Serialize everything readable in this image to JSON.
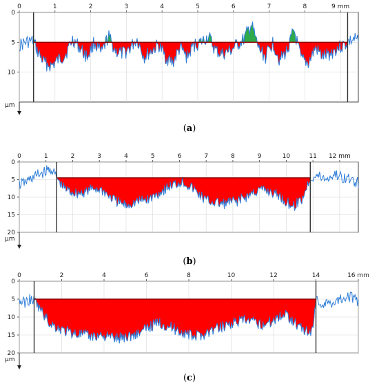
{
  "figure": {
    "panels": [
      {
        "id": "a",
        "caption": "a",
        "chart_data": {
          "type": "area",
          "x_unit": "mm",
          "y_unit": "µm",
          "x_ticks": [
            0,
            1,
            2,
            3,
            4,
            5,
            6,
            7,
            8,
            9
          ],
          "x_tick_labels": [
            "0",
            "1",
            "2",
            "3",
            "4",
            "5",
            "6",
            "7",
            "8",
            "9 mm"
          ],
          "y_ticks": [
            0,
            5,
            10
          ],
          "y_tick_labels": [
            "0",
            "5",
            "10"
          ],
          "xlim": [
            0,
            9.5
          ],
          "ylim": [
            0,
            15
          ],
          "y_inverted": true,
          "reference_level": 5,
          "boundaries": [
            0.4,
            9.2
          ],
          "grid": true,
          "colors": {
            "profile": "#2f7ed8",
            "below_fill": "#ff0000",
            "above_fill": "#2eaa4a",
            "reference": "#8b0000",
            "boundary": "#333333"
          },
          "profile": {
            "x": [
              0.0,
              0.2,
              0.4,
              0.5,
              0.7,
              0.9,
              1.1,
              1.3,
              1.5,
              1.7,
              1.9,
              2.1,
              2.3,
              2.5,
              2.7,
              2.9,
              3.1,
              3.3,
              3.5,
              3.7,
              3.9,
              4.1,
              4.3,
              4.5,
              4.7,
              4.9,
              5.1,
              5.3,
              5.5,
              5.7,
              5.9,
              6.1,
              6.3,
              6.5,
              6.7,
              6.9,
              7.1,
              7.3,
              7.5,
              7.7,
              7.9,
              8.1,
              8.3,
              8.5,
              8.7,
              8.9,
              9.1,
              9.2,
              9.4,
              9.5
            ],
            "y": [
              5.5,
              5.0,
              4.8,
              6.5,
              8.5,
              9.0,
              8.0,
              7.0,
              4.5,
              6.0,
              7.5,
              5.0,
              7.0,
              4.0,
              6.5,
              7.0,
              6.0,
              4.5,
              7.5,
              6.5,
              5.5,
              7.5,
              8.5,
              6.0,
              7.5,
              5.5,
              5.0,
              4.0,
              6.5,
              7.0,
              6.5,
              5.5,
              4.5,
              2.0,
              6.0,
              7.5,
              5.0,
              8.0,
              6.5,
              3.0,
              8.0,
              8.5,
              6.0,
              7.5,
              7.0,
              6.0,
              5.5,
              5.0,
              4.5,
              5.0
            ]
          }
        }
      },
      {
        "id": "b",
        "caption": "b",
        "chart_data": {
          "type": "area",
          "x_unit": "mm",
          "y_unit": "µm",
          "x_ticks": [
            0,
            1,
            2,
            3,
            4,
            5,
            6,
            7,
            8,
            9,
            10,
            11,
            12
          ],
          "x_tick_labels": [
            "0",
            "1",
            "2",
            "3",
            "4",
            "5",
            "6",
            "7",
            "8",
            "9",
            "10",
            "11",
            "12 mm"
          ],
          "y_ticks": [
            0,
            5,
            10,
            15,
            20
          ],
          "y_tick_labels": [
            "0",
            "5",
            "10",
            "15",
            "20"
          ],
          "xlim": [
            0,
            12.7
          ],
          "ylim": [
            0,
            20
          ],
          "y_inverted": true,
          "reference_level": 4.5,
          "boundaries": [
            1.4,
            10.9
          ],
          "grid": true,
          "colors": {
            "profile": "#2f7ed8",
            "below_fill": "#ff0000",
            "above_fill": "#2eaa4a",
            "reference": "#8b0000",
            "boundary": "#333333"
          },
          "profile": {
            "x": [
              0.0,
              0.3,
              0.6,
              0.9,
              1.2,
              1.4,
              1.6,
              1.9,
              2.2,
              2.5,
              2.8,
              3.1,
              3.4,
              3.7,
              4.0,
              4.3,
              4.6,
              4.9,
              5.2,
              5.5,
              5.8,
              6.1,
              6.4,
              6.7,
              7.0,
              7.3,
              7.6,
              7.9,
              8.2,
              8.5,
              8.8,
              9.1,
              9.4,
              9.7,
              10.0,
              10.3,
              10.6,
              10.9,
              11.2,
              11.5,
              11.8,
              12.1,
              12.4,
              12.7
            ],
            "y": [
              6.5,
              5.5,
              4.0,
              3.0,
              2.0,
              4.5,
              7.0,
              8.5,
              9.0,
              8.5,
              7.5,
              8.0,
              10.0,
              11.5,
              12.5,
              11.5,
              11.0,
              10.5,
              9.0,
              7.5,
              6.5,
              5.5,
              7.0,
              9.0,
              11.0,
              11.5,
              12.0,
              11.5,
              11.0,
              10.0,
              8.5,
              8.0,
              8.5,
              9.5,
              11.5,
              12.5,
              10.5,
              4.5,
              4.0,
              5.0,
              3.5,
              4.5,
              5.0,
              6.0
            ]
          }
        }
      },
      {
        "id": "c",
        "caption": "c",
        "chart_data": {
          "type": "area",
          "x_unit": "mm",
          "y_unit": "µm",
          "x_ticks": [
            0,
            2,
            4,
            6,
            8,
            10,
            12,
            14,
            16
          ],
          "x_tick_labels": [
            "0",
            "2",
            "4",
            "6",
            "8",
            "10",
            "12",
            "14",
            "16 mm"
          ],
          "y_ticks": [
            0,
            5,
            10,
            15,
            20
          ],
          "y_tick_labels": [
            "0",
            "5",
            "10",
            "15",
            "20"
          ],
          "xlim": [
            0,
            16
          ],
          "ylim": [
            0,
            20
          ],
          "y_inverted": true,
          "reference_level": 5,
          "boundaries": [
            0.7,
            14.0
          ],
          "grid": true,
          "colors": {
            "profile": "#2f7ed8",
            "below_fill": "#ff0000",
            "above_fill": "#2eaa4a",
            "reference": "#8b0000",
            "boundary": "#333333"
          },
          "profile": {
            "x": [
              0.0,
              0.3,
              0.5,
              0.7,
              1.0,
              1.4,
              1.8,
              2.2,
              2.6,
              3.0,
              3.4,
              3.8,
              4.2,
              4.6,
              5.0,
              5.4,
              5.8,
              6.2,
              6.6,
              7.0,
              7.4,
              7.8,
              8.2,
              8.6,
              9.0,
              9.4,
              9.8,
              10.2,
              10.6,
              11.0,
              11.4,
              11.8,
              12.2,
              12.6,
              13.0,
              13.4,
              13.8,
              14.0,
              14.3,
              14.7,
              15.1,
              15.5,
              15.8,
              16.0
            ],
            "y": [
              5.5,
              6.0,
              5.0,
              5.5,
              8.0,
              11.5,
              13.0,
              14.0,
              14.5,
              15.0,
              15.5,
              15.0,
              15.5,
              16.0,
              15.5,
              15.0,
              14.0,
              12.5,
              11.5,
              12.5,
              13.5,
              14.5,
              15.5,
              15.0,
              14.0,
              13.0,
              12.0,
              11.5,
              11.0,
              11.5,
              12.0,
              11.5,
              10.0,
              9.0,
              11.5,
              13.5,
              14.5,
              5.0,
              6.5,
              6.0,
              5.0,
              4.0,
              5.0,
              5.5
            ]
          }
        }
      }
    ]
  }
}
